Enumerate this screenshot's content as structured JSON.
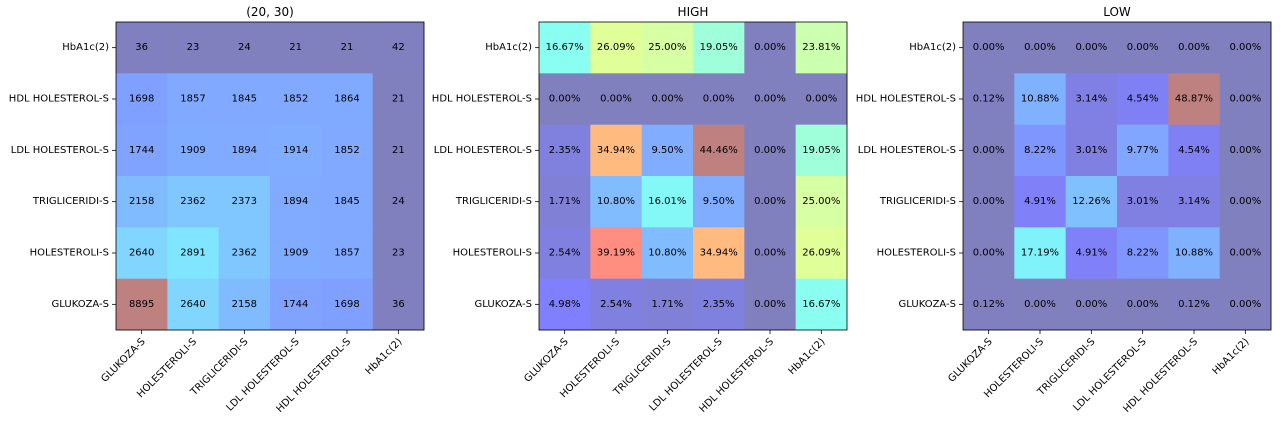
{
  "chart_data": [
    {
      "type": "heatmap",
      "title": "(20, 30)",
      "x_categories": [
        "GLUKOZA-S",
        "HOLESTEROLI-S",
        "TRIGLICERIDI-S",
        "LDL HOLESTEROL-S",
        "HDL HOLESTEROL-S",
        "HbA1c(2)"
      ],
      "y_categories": [
        "HbA1c(2)",
        "HDL HOLESTEROL-S",
        "LDL HOLESTEROL-S",
        "TRIGLICERIDI-S",
        "HOLESTEROLI-S",
        "GLUKOZA-S"
      ],
      "values": [
        [
          36,
          23,
          24,
          21,
          21,
          42
        ],
        [
          1698,
          1857,
          1845,
          1852,
          1864,
          21
        ],
        [
          1744,
          1909,
          1894,
          1914,
          1852,
          21
        ],
        [
          2158,
          2362,
          2373,
          1894,
          1845,
          24
        ],
        [
          2640,
          2891,
          2362,
          1909,
          1857,
          23
        ],
        [
          8895,
          2640,
          2158,
          1744,
          1698,
          36
        ]
      ],
      "labels": [
        [
          "36",
          "23",
          "24",
          "21",
          "21",
          "42"
        ],
        [
          "1698",
          "1857",
          "1845",
          "1852",
          "1864",
          "21"
        ],
        [
          "1744",
          "1909",
          "1894",
          "1914",
          "1852",
          "21"
        ],
        [
          "2158",
          "2362",
          "2373",
          "1894",
          "1845",
          "24"
        ],
        [
          "2640",
          "2891",
          "2362",
          "1909",
          "1857",
          "23"
        ],
        [
          "8895",
          "2640",
          "2158",
          "1744",
          "1698",
          "36"
        ]
      ],
      "colormap": "jet",
      "alpha": 0.5
    },
    {
      "type": "heatmap",
      "title": "HIGH",
      "x_categories": [
        "GLUKOZA-S",
        "HOLESTEROLI-S",
        "TRIGLICERIDI-S",
        "LDL HOLESTEROL-S",
        "HDL HOLESTEROL-S",
        "HbA1c(2)"
      ],
      "y_categories": [
        "HbA1c(2)",
        "HDL HOLESTEROL-S",
        "LDL HOLESTEROL-S",
        "TRIGLICERIDI-S",
        "HOLESTEROLI-S",
        "GLUKOZA-S"
      ],
      "values": [
        [
          16.67,
          26.09,
          25.0,
          19.05,
          0.0,
          23.81
        ],
        [
          0.0,
          0.0,
          0.0,
          0.0,
          0.0,
          0.0
        ],
        [
          2.35,
          34.94,
          9.5,
          44.46,
          0.0,
          19.05
        ],
        [
          1.71,
          10.8,
          16.01,
          9.5,
          0.0,
          25.0
        ],
        [
          2.54,
          39.19,
          10.8,
          34.94,
          0.0,
          26.09
        ],
        [
          4.98,
          2.54,
          1.71,
          2.35,
          0.0,
          16.67
        ]
      ],
      "labels": [
        [
          "16.67%",
          "26.09%",
          "25.00%",
          "19.05%",
          "0.00%",
          "23.81%"
        ],
        [
          "0.00%",
          "0.00%",
          "0.00%",
          "0.00%",
          "0.00%",
          "0.00%"
        ],
        [
          "2.35%",
          "34.94%",
          "9.50%",
          "44.46%",
          "0.00%",
          "19.05%"
        ],
        [
          "1.71%",
          "10.80%",
          "16.01%",
          "9.50%",
          "0.00%",
          "25.00%"
        ],
        [
          "2.54%",
          "39.19%",
          "10.80%",
          "34.94%",
          "0.00%",
          "26.09%"
        ],
        [
          "4.98%",
          "2.54%",
          "1.71%",
          "2.35%",
          "0.00%",
          "16.67%"
        ]
      ],
      "colormap": "jet",
      "alpha": 0.5
    },
    {
      "type": "heatmap",
      "title": "LOW",
      "x_categories": [
        "GLUKOZA-S",
        "HOLESTEROLI-S",
        "TRIGLICERIDI-S",
        "LDL HOLESTEROL-S",
        "HDL HOLESTEROL-S",
        "HbA1c(2)"
      ],
      "y_categories": [
        "HbA1c(2)",
        "HDL HOLESTEROL-S",
        "LDL HOLESTEROL-S",
        "TRIGLICERIDI-S",
        "HOLESTEROLI-S",
        "GLUKOZA-S"
      ],
      "values": [
        [
          0.0,
          0.0,
          0.0,
          0.0,
          0.0,
          0.0
        ],
        [
          0.12,
          10.88,
          3.14,
          4.54,
          48.87,
          0.0
        ],
        [
          0.0,
          8.22,
          3.01,
          9.77,
          4.54,
          0.0
        ],
        [
          0.0,
          4.91,
          12.26,
          3.01,
          3.14,
          0.0
        ],
        [
          0.0,
          17.19,
          4.91,
          8.22,
          10.88,
          0.0
        ],
        [
          0.12,
          0.0,
          0.0,
          0.0,
          0.12,
          0.0
        ]
      ],
      "labels": [
        [
          "0.00%",
          "0.00%",
          "0.00%",
          "0.00%",
          "0.00%",
          "0.00%"
        ],
        [
          "0.12%",
          "10.88%",
          "3.14%",
          "4.54%",
          "48.87%",
          "0.00%"
        ],
        [
          "0.00%",
          "8.22%",
          "3.01%",
          "9.77%",
          "4.54%",
          "0.00%"
        ],
        [
          "0.00%",
          "4.91%",
          "12.26%",
          "3.01%",
          "3.14%",
          "0.00%"
        ],
        [
          "0.00%",
          "17.19%",
          "4.91%",
          "8.22%",
          "10.88%",
          "0.00%"
        ],
        [
          "0.12%",
          "0.00%",
          "0.00%",
          "0.00%",
          "0.12%",
          "0.00%"
        ]
      ],
      "colormap": "jet",
      "alpha": 0.5
    }
  ]
}
